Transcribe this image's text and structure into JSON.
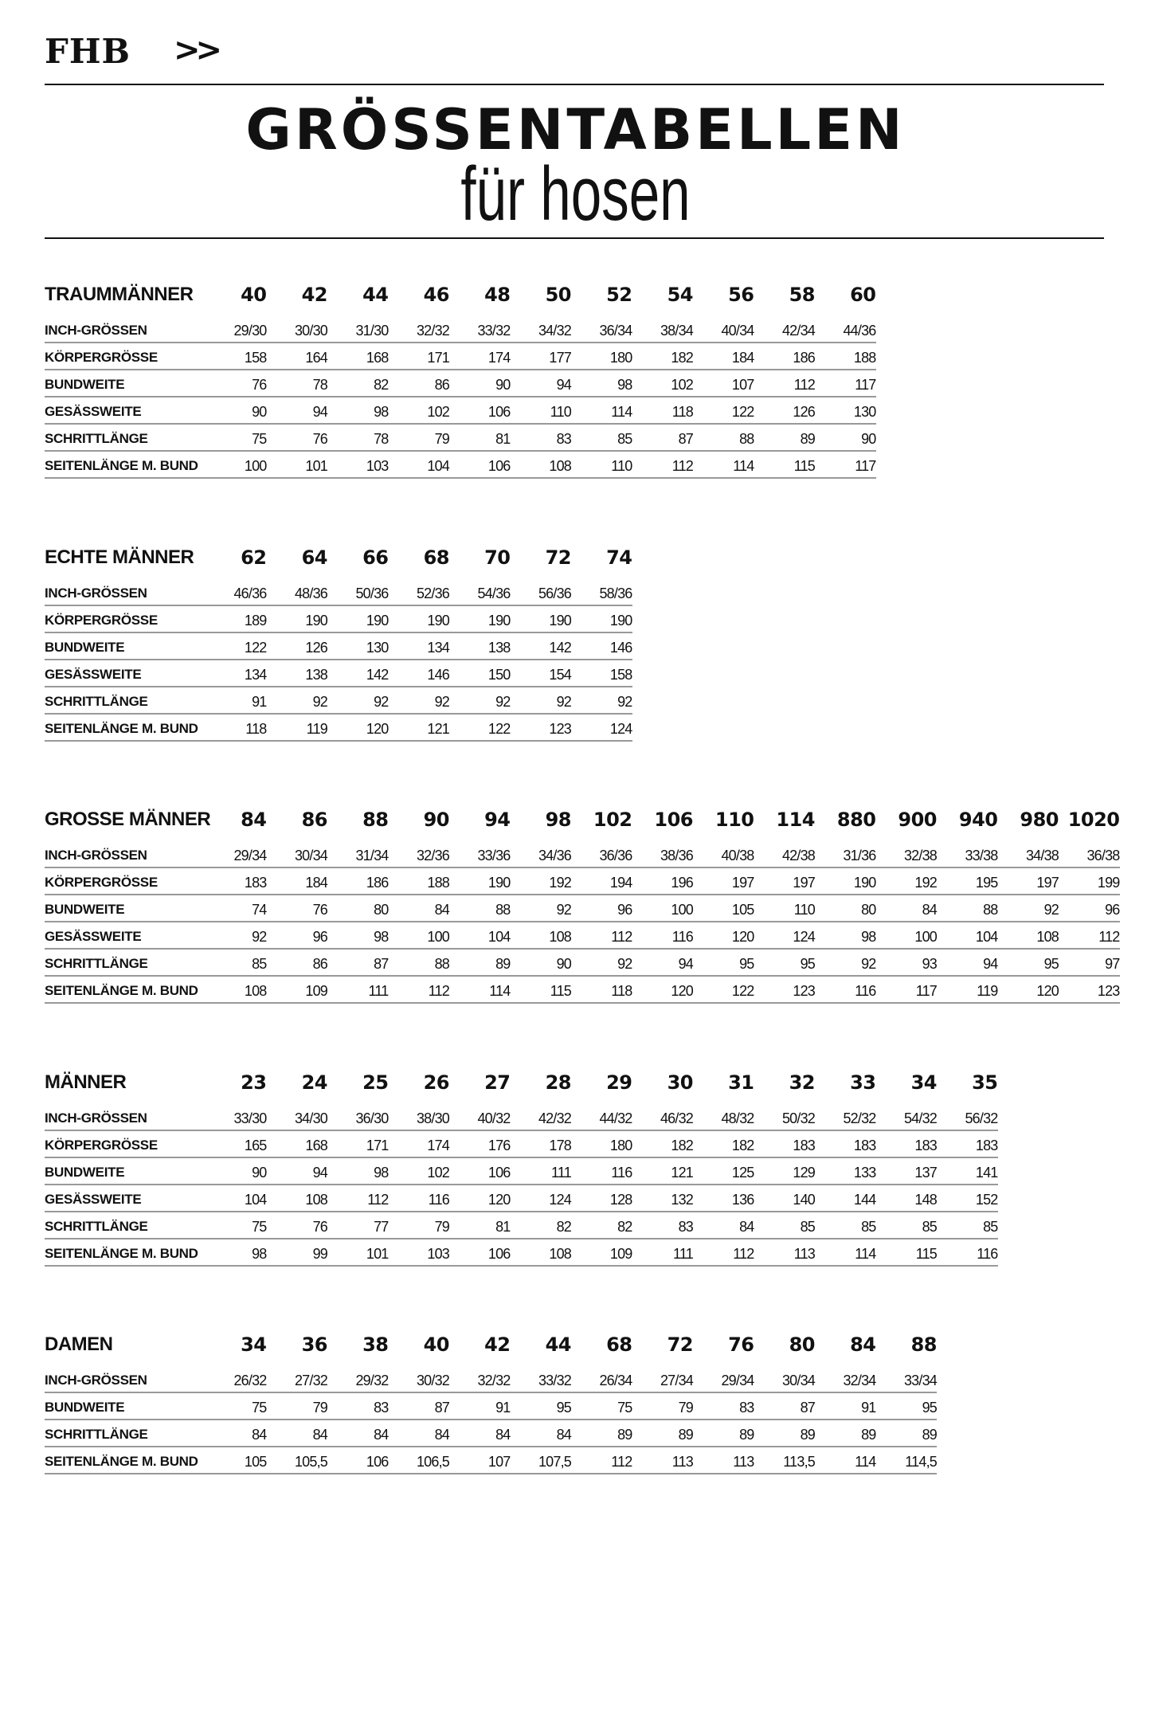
{
  "header": {
    "logo": "FHB",
    "arrows": ">>",
    "title": "GRÖSSENTABELLEN",
    "subtitle": "für hosen"
  },
  "tables": [
    {
      "title": "TRAUMMÄNNER",
      "sizes": [
        "40",
        "42",
        "44",
        "46",
        "48",
        "50",
        "52",
        "54",
        "56",
        "58",
        "60"
      ],
      "rows": [
        {
          "label": "INCH-GRÖSSEN",
          "values": [
            "29/30",
            "30/30",
            "31/30",
            "32/32",
            "33/32",
            "34/32",
            "36/34",
            "38/34",
            "40/34",
            "42/34",
            "44/36"
          ]
        },
        {
          "label": "KÖRPERGRÖSSE",
          "values": [
            "158",
            "164",
            "168",
            "171",
            "174",
            "177",
            "180",
            "182",
            "184",
            "186",
            "188"
          ]
        },
        {
          "label": "BUNDWEITE",
          "values": [
            "76",
            "78",
            "82",
            "86",
            "90",
            "94",
            "98",
            "102",
            "107",
            "112",
            "117"
          ]
        },
        {
          "label": "GESÄSSWEITE",
          "values": [
            "90",
            "94",
            "98",
            "102",
            "106",
            "110",
            "114",
            "118",
            "122",
            "126",
            "130"
          ]
        },
        {
          "label": "SCHRITTLÄNGE",
          "values": [
            "75",
            "76",
            "78",
            "79",
            "81",
            "83",
            "85",
            "87",
            "88",
            "89",
            "90"
          ]
        },
        {
          "label": "SEITENLÄNGE M. BUND",
          "values": [
            "100",
            "101",
            "103",
            "104",
            "106",
            "108",
            "110",
            "112",
            "114",
            "115",
            "117"
          ]
        }
      ]
    },
    {
      "title": "ECHTE MÄNNER",
      "sizes": [
        "62",
        "64",
        "66",
        "68",
        "70",
        "72",
        "74"
      ],
      "rows": [
        {
          "label": "INCH-GRÖSSEN",
          "values": [
            "46/36",
            "48/36",
            "50/36",
            "52/36",
            "54/36",
            "56/36",
            "58/36"
          ]
        },
        {
          "label": "KÖRPERGRÖSSE",
          "values": [
            "189",
            "190",
            "190",
            "190",
            "190",
            "190",
            "190"
          ]
        },
        {
          "label": "BUNDWEITE",
          "values": [
            "122",
            "126",
            "130",
            "134",
            "138",
            "142",
            "146"
          ]
        },
        {
          "label": "GESÄSSWEITE",
          "values": [
            "134",
            "138",
            "142",
            "146",
            "150",
            "154",
            "158"
          ]
        },
        {
          "label": "SCHRITTLÄNGE",
          "values": [
            "91",
            "92",
            "92",
            "92",
            "92",
            "92",
            "92"
          ]
        },
        {
          "label": "SEITENLÄNGE M. BUND",
          "values": [
            "118",
            "119",
            "120",
            "121",
            "122",
            "123",
            "124"
          ]
        }
      ]
    },
    {
      "title": "GROSSE MÄNNER",
      "sizes": [
        "84",
        "86",
        "88",
        "90",
        "94",
        "98",
        "102",
        "106",
        "110",
        "114",
        "880",
        "900",
        "940",
        "980",
        "1020"
      ],
      "rows": [
        {
          "label": "INCH-GRÖSSEN",
          "values": [
            "29/34",
            "30/34",
            "31/34",
            "32/36",
            "33/36",
            "34/36",
            "36/36",
            "38/36",
            "40/38",
            "42/38",
            "31/36",
            "32/38",
            "33/38",
            "34/38",
            "36/38"
          ]
        },
        {
          "label": "KÖRPERGRÖSSE",
          "values": [
            "183",
            "184",
            "186",
            "188",
            "190",
            "192",
            "194",
            "196",
            "197",
            "197",
            "190",
            "192",
            "195",
            "197",
            "199"
          ]
        },
        {
          "label": "BUNDWEITE",
          "values": [
            "74",
            "76",
            "80",
            "84",
            "88",
            "92",
            "96",
            "100",
            "105",
            "110",
            "80",
            "84",
            "88",
            "92",
            "96"
          ]
        },
        {
          "label": "GESÄSSWEITE",
          "values": [
            "92",
            "96",
            "98",
            "100",
            "104",
            "108",
            "112",
            "116",
            "120",
            "124",
            "98",
            "100",
            "104",
            "108",
            "112"
          ]
        },
        {
          "label": "SCHRITTLÄNGE",
          "values": [
            "85",
            "86",
            "87",
            "88",
            "89",
            "90",
            "92",
            "94",
            "95",
            "95",
            "92",
            "93",
            "94",
            "95",
            "97"
          ]
        },
        {
          "label": "SEITENLÄNGE M. BUND",
          "values": [
            "108",
            "109",
            "111",
            "112",
            "114",
            "115",
            "118",
            "120",
            "122",
            "123",
            "116",
            "117",
            "119",
            "120",
            "123"
          ]
        }
      ]
    },
    {
      "title": "MÄNNER",
      "sizes": [
        "23",
        "24",
        "25",
        "26",
        "27",
        "28",
        "29",
        "30",
        "31",
        "32",
        "33",
        "34",
        "35"
      ],
      "rows": [
        {
          "label": "INCH-GRÖSSEN",
          "values": [
            "33/30",
            "34/30",
            "36/30",
            "38/30",
            "40/32",
            "42/32",
            "44/32",
            "46/32",
            "48/32",
            "50/32",
            "52/32",
            "54/32",
            "56/32"
          ]
        },
        {
          "label": "KÖRPERGRÖSSE",
          "values": [
            "165",
            "168",
            "171",
            "174",
            "176",
            "178",
            "180",
            "182",
            "182",
            "183",
            "183",
            "183",
            "183"
          ]
        },
        {
          "label": "BUNDWEITE",
          "values": [
            "90",
            "94",
            "98",
            "102",
            "106",
            "111",
            "116",
            "121",
            "125",
            "129",
            "133",
            "137",
            "141"
          ]
        },
        {
          "label": "GESÄSSWEITE",
          "values": [
            "104",
            "108",
            "112",
            "116",
            "120",
            "124",
            "128",
            "132",
            "136",
            "140",
            "144",
            "148",
            "152"
          ]
        },
        {
          "label": "SCHRITTLÄNGE",
          "values": [
            "75",
            "76",
            "77",
            "79",
            "81",
            "82",
            "82",
            "83",
            "84",
            "85",
            "85",
            "85",
            "85"
          ]
        },
        {
          "label": "SEITENLÄNGE M. BUND",
          "values": [
            "98",
            "99",
            "101",
            "103",
            "106",
            "108",
            "109",
            "111",
            "112",
            "113",
            "114",
            "115",
            "116"
          ]
        }
      ]
    },
    {
      "title": "DAMEN",
      "sizes": [
        "34",
        "36",
        "38",
        "40",
        "42",
        "44",
        "68",
        "72",
        "76",
        "80",
        "84",
        "88"
      ],
      "rows": [
        {
          "label": "INCH-GRÖSSEN",
          "values": [
            "26/32",
            "27/32",
            "29/32",
            "30/32",
            "32/32",
            "33/32",
            "26/34",
            "27/34",
            "29/34",
            "30/34",
            "32/34",
            "33/34"
          ]
        },
        {
          "label": "BUNDWEITE",
          "values": [
            "75",
            "79",
            "83",
            "87",
            "91",
            "95",
            "75",
            "79",
            "83",
            "87",
            "91",
            "95"
          ]
        },
        {
          "label": "SCHRITTLÄNGE",
          "values": [
            "84",
            "84",
            "84",
            "84",
            "84",
            "84",
            "89",
            "89",
            "89",
            "89",
            "89",
            "89"
          ]
        },
        {
          "label": "SEITENLÄNGE M. BUND",
          "values": [
            "105",
            "105,5",
            "106",
            "106,5",
            "107",
            "107,5",
            "112",
            "113",
            "113",
            "113,5",
            "114",
            "114,5"
          ]
        }
      ]
    }
  ]
}
